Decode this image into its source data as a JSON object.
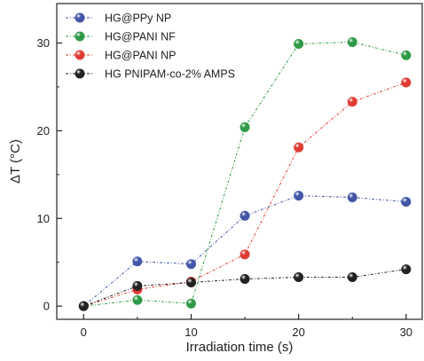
{
  "chart_data": {
    "type": "line",
    "xlabel": "Irradiation time (s)",
    "ylabel": "ΔT (°C)",
    "x": [
      0,
      5,
      10,
      15,
      20,
      25,
      30
    ],
    "xticks": [
      0,
      10,
      20,
      30
    ],
    "yticks": [
      0,
      10,
      20,
      30
    ],
    "xlim": [
      -2.5,
      31.5
    ],
    "ylim": [
      -1.5,
      34.5
    ],
    "grid": false,
    "legend_position": "top-left",
    "series": [
      {
        "name": "HG@PPy NP",
        "color": "#4356a8",
        "values": [
          0,
          5.1,
          4.8,
          10.3,
          12.6,
          12.4,
          11.9
        ]
      },
      {
        "name": "HG@PANI NF",
        "color": "#2f9a47",
        "values": [
          0,
          0.7,
          0.3,
          20.4,
          29.9,
          30.1,
          28.6
        ]
      },
      {
        "name": "HG@PANI NP",
        "color": "#e03b33",
        "values": [
          0,
          1.9,
          2.8,
          5.9,
          18.1,
          23.3,
          25.5
        ]
      },
      {
        "name": "HG PNIPAM-co-2% AMPS",
        "color": "#222222",
        "values": [
          0,
          2.3,
          2.7,
          3.1,
          3.3,
          3.3,
          4.2
        ]
      }
    ]
  }
}
